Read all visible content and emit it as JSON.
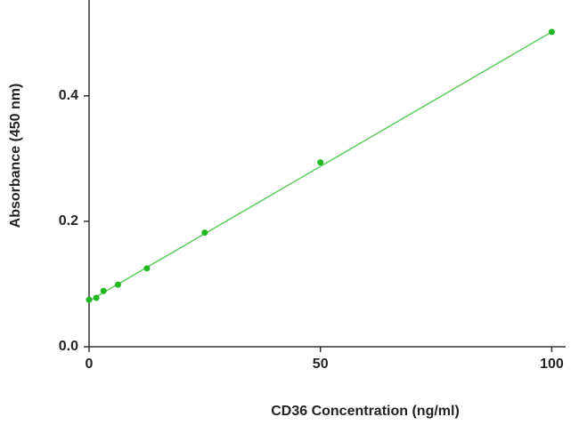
{
  "chart_data": {
    "type": "scatter",
    "x_label": "CD36 Concentration (ng/ml)",
    "y_label": "Absorbance (450 nm)",
    "x": [
      0,
      1.56,
      3.125,
      6.25,
      12.5,
      25,
      50,
      100
    ],
    "values": [
      0.075,
      0.078,
      0.089,
      0.099,
      0.125,
      0.182,
      0.294,
      0.502
    ],
    "color": "#22b822",
    "trendline": {
      "x": [
        0,
        100
      ],
      "values": [
        0.073,
        0.502
      ],
      "color": "#5ccc5c"
    },
    "xlim": [
      0,
      103
    ],
    "ylim": [
      0,
      0.55
    ],
    "xticks": [
      0,
      50,
      100
    ],
    "yticks": [
      {
        "value": 0,
        "label": "0.0"
      },
      0.2,
      0.4
    ]
  }
}
